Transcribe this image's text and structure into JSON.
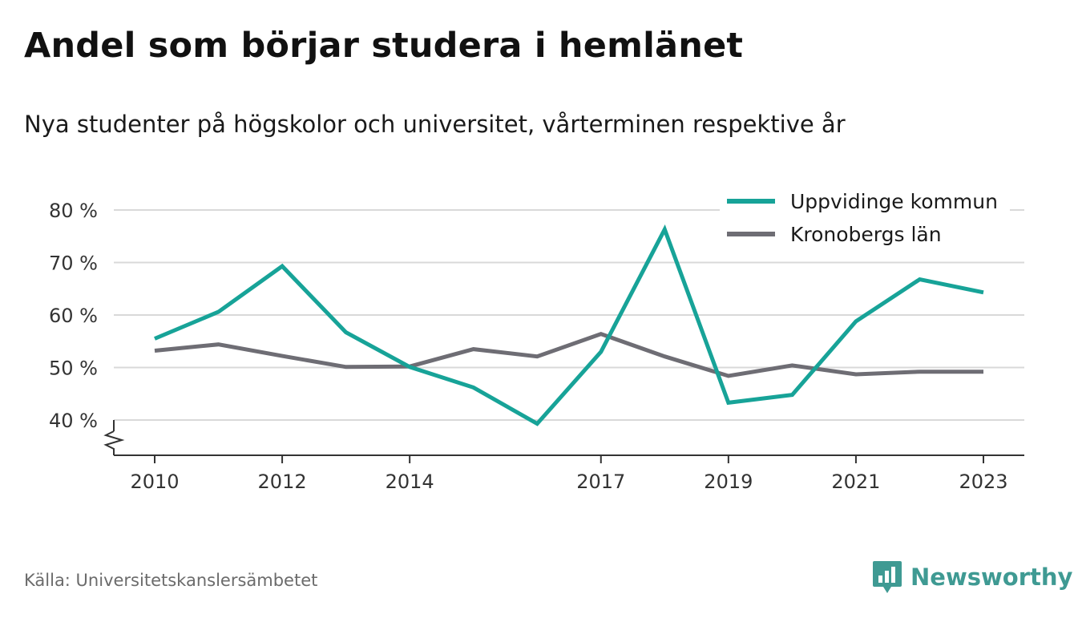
{
  "title": "Andel som börjar studera i hemlänet",
  "subtitle": "Nya studenter på högskolor och universitet, vårterminen respektive år",
  "source": "Källa: Universitetskanslersämbetet",
  "brand": {
    "name": "Newsworthy",
    "icon": "newsworthy-logo-icon",
    "color": "#3f9a93"
  },
  "chart_data": {
    "type": "line",
    "x": [
      2010,
      2011,
      2012,
      2013,
      2014,
      2015,
      2016,
      2017,
      2018,
      2019,
      2020,
      2021,
      2022,
      2023
    ],
    "x_tick_labels": [
      "2010",
      "2012",
      "2014",
      "2017",
      "2019",
      "2021",
      "2023"
    ],
    "x_tick_values": [
      2010,
      2012,
      2014,
      2017,
      2019,
      2021,
      2023
    ],
    "y_ticks": [
      40,
      50,
      60,
      70,
      80
    ],
    "y_tick_labels": [
      "40 %",
      "50 %",
      "60 %",
      "70 %",
      "80 %"
    ],
    "ylim": [
      33.5,
      82
    ],
    "y_axis_break": true,
    "grid": true,
    "legend_position": "top-right",
    "series": [
      {
        "name": "Uppvidinge kommun",
        "color": "#17a398",
        "values": [
          55.5,
          60.6,
          69.3,
          56.7,
          50.1,
          46.2,
          39.3,
          53.0,
          76.3,
          43.3,
          44.8,
          58.8,
          66.8,
          64.3
        ]
      },
      {
        "name": "Kronobergs län",
        "color": "#6e6d74",
        "values": [
          53.2,
          54.4,
          52.2,
          50.1,
          50.2,
          53.5,
          52.1,
          56.4,
          52.1,
          48.4,
          50.4,
          48.7,
          49.2,
          49.2
        ]
      }
    ]
  }
}
